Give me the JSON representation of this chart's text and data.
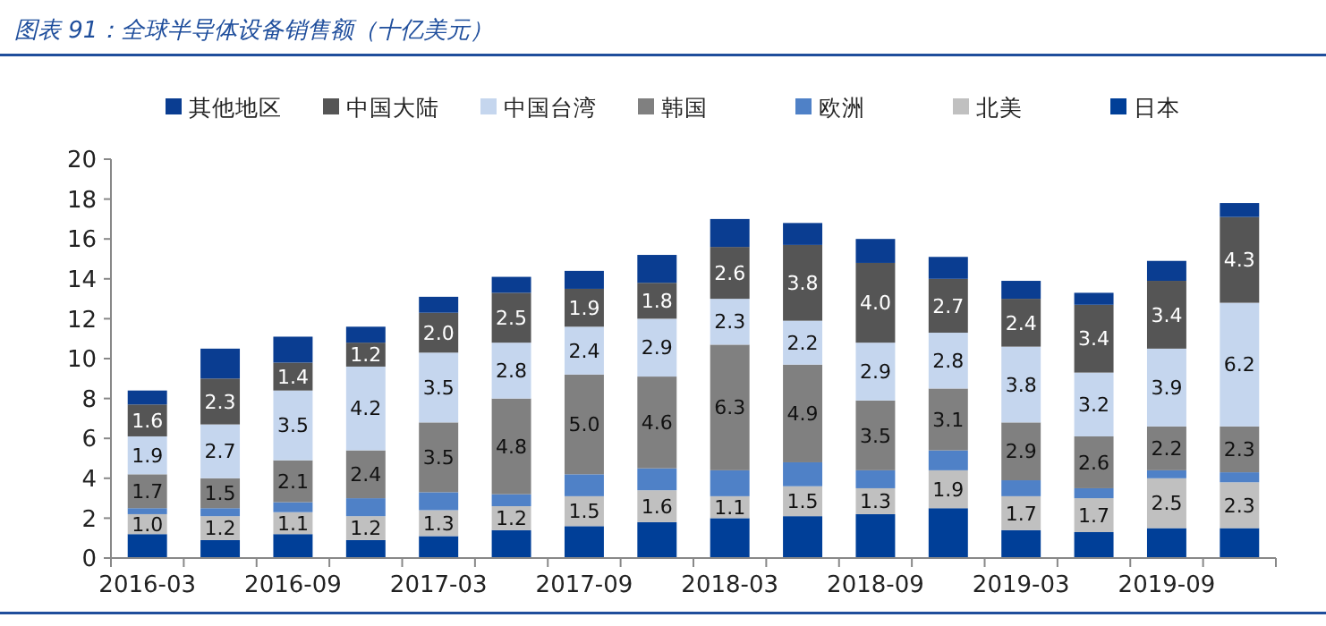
{
  "chart_data": {
    "type": "bar",
    "title": "图表 91：全球半导体设备销售额（十亿美元）",
    "stacked": true,
    "legend": "top",
    "categories": [
      "2016-03",
      null,
      "2016-09",
      null,
      "2017-03",
      null,
      "2017-09",
      null,
      "2018-03",
      null,
      "2018-09",
      null,
      "2019-03",
      null,
      "2019-09",
      null
    ],
    "ylim": [
      0,
      20
    ],
    "yticks": [
      0,
      2,
      4,
      6,
      8,
      10,
      12,
      14,
      16,
      18,
      20
    ],
    "series": [
      {
        "name": "日本",
        "color": "#003f98",
        "values": [
          1.2,
          0.9,
          1.2,
          0.9,
          1.1,
          1.4,
          1.6,
          1.8,
          2.0,
          2.1,
          2.2,
          2.5,
          1.4,
          1.3,
          1.5,
          1.5
        ]
      },
      {
        "name": "北美",
        "color": "#c0c0c0",
        "values": [
          1.0,
          1.2,
          1.1,
          1.2,
          1.3,
          1.2,
          1.5,
          1.6,
          1.1,
          1.5,
          1.3,
          1.9,
          1.7,
          1.7,
          2.5,
          2.3
        ],
        "value_labels": [
          "1.0",
          "1.2",
          "1.1",
          "1.2",
          "1.3",
          "1.2",
          "1.5",
          "1.6",
          "1.1",
          "1.5",
          "1.3",
          "1.9",
          "1.7",
          "1.7",
          "2.5",
          "2.3"
        ]
      },
      {
        "name": "欧洲",
        "color": "#4f81c7",
        "values": [
          0.3,
          0.4,
          0.5,
          0.9,
          0.9,
          0.6,
          1.1,
          1.1,
          1.3,
          1.2,
          0.9,
          1.0,
          0.8,
          0.5,
          0.4,
          0.5
        ]
      },
      {
        "name": "韩国",
        "color": "#808080",
        "values": [
          1.7,
          1.5,
          2.1,
          2.4,
          3.5,
          4.8,
          5.0,
          4.6,
          6.3,
          4.9,
          3.5,
          3.1,
          2.9,
          2.6,
          2.2,
          2.3
        ],
        "value_labels": [
          "1.7",
          "1.5",
          "2.1",
          "2.4",
          "3.5",
          "4.8",
          "5.0",
          "4.6",
          "6.3",
          "4.9",
          "3.5",
          "3.1",
          "2.9",
          "2.6",
          "2.2",
          "2.3"
        ]
      },
      {
        "name": "中国台湾",
        "color": "#c5d6ee",
        "values": [
          1.9,
          2.7,
          3.5,
          4.2,
          3.5,
          2.8,
          2.4,
          2.9,
          2.3,
          2.2,
          2.9,
          2.8,
          3.8,
          3.2,
          3.9,
          6.2
        ],
        "value_labels": [
          "1.9",
          "2.7",
          "3.5",
          "4.2",
          "3.5",
          "2.8",
          "2.4",
          "2.9",
          "2.3",
          "2.2",
          "2.9",
          "2.8",
          "3.8",
          "3.2",
          "3.9",
          "6.2"
        ]
      },
      {
        "name": "中国大陆",
        "color": "#555555",
        "values": [
          1.6,
          2.3,
          1.4,
          1.2,
          2.0,
          2.5,
          1.9,
          1.8,
          2.6,
          3.8,
          4.0,
          2.7,
          2.4,
          3.4,
          3.4,
          4.3
        ],
        "value_labels": [
          "1.6",
          "2.3",
          "1.4",
          "1.2",
          "2.0",
          "2.5",
          "1.9",
          "1.8",
          "2.6",
          "3.8",
          "4.0",
          "2.7",
          "2.4",
          "3.4",
          "3.4",
          "4.3"
        ]
      },
      {
        "name": "其他地区",
        "color": "#0a3d91",
        "values": [
          0.7,
          1.5,
          1.3,
          0.8,
          0.8,
          0.8,
          0.9,
          1.4,
          1.4,
          1.1,
          1.2,
          1.1,
          0.9,
          0.6,
          1.0,
          0.7
        ]
      }
    ]
  }
}
